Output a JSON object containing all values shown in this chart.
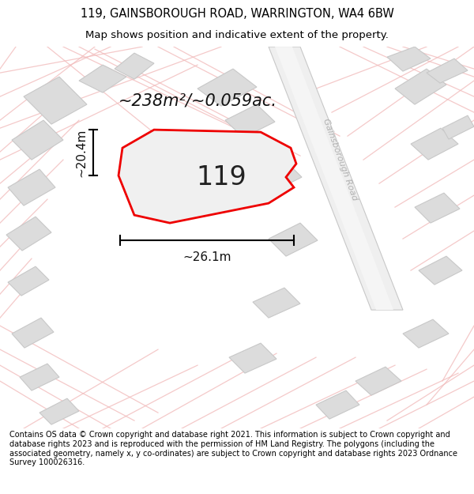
{
  "title_line1": "119, GAINSBOROUGH ROAD, WARRINGTON, WA4 6BW",
  "title_line2": "Map shows position and indicative extent of the property.",
  "footer_text": "Contains OS data © Crown copyright and database right 2021. This information is subject to Crown copyright and database rights 2023 and is reproduced with the permission of HM Land Registry. The polygons (including the associated geometry, namely x, y co-ordinates) are subject to Crown copyright and database rights 2023 Ordnance Survey 100026316.",
  "area_label": "~238m²/~0.059ac.",
  "width_label": "~26.1m",
  "height_label": "~20.4m",
  "number_label": "119",
  "background_color": "#ffffff",
  "map_bg_color": "#f7f7f7",
  "road_color": "#f2bcbc",
  "building_color": "#dcdcdc",
  "building_edge_color": "#c8c8c8",
  "plot_fill_color": "#f0f0f0",
  "plot_edge_color": "#ee0000",
  "road_fill_color": "#efefef",
  "road_label": "Gainsborough Road",
  "title_fontsize": 10.5,
  "subtitle_fontsize": 9.5,
  "label_fontsize": 15,
  "number_fontsize": 24,
  "footer_fontsize": 7.0
}
